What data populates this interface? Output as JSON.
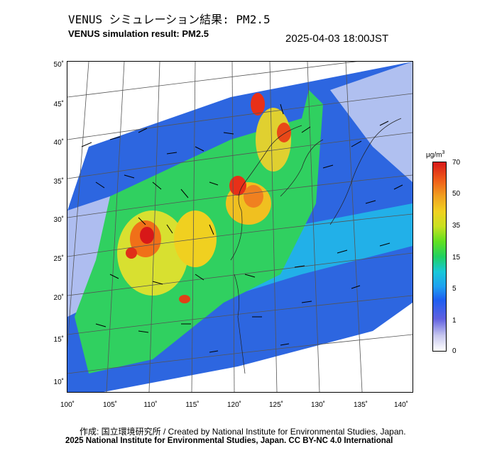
{
  "header": {
    "title_jp": "VENUS シミュレーション結果: PM2.5",
    "title_en": "VENUS simulation result: PM2.5",
    "timestamp": "2025-04-03 18:00JST"
  },
  "map": {
    "lat_ticks": [
      "50˚",
      "45˚",
      "40˚",
      "35˚",
      "30˚",
      "25˚",
      "20˚",
      "15˚",
      "10˚"
    ],
    "lon_ticks": [
      "100˚",
      "105˚",
      "110˚",
      "115˚",
      "120˚",
      "125˚",
      "130˚",
      "135˚",
      "140˚"
    ],
    "overlay": "PM2.5 concentration with wind vectors"
  },
  "colorbar": {
    "unit_base": "μg/m",
    "unit_sup": "3",
    "labels": [
      "70",
      "50",
      "35",
      "15",
      "5",
      "1",
      "0"
    ],
    "colors": [
      "#d81818",
      "#f06018",
      "#f0d020",
      "#20d060",
      "#1ea0f0",
      "#6060e0",
      "#ffffff"
    ]
  },
  "footer": {
    "credit_line": "作成: 国立環境研究所 / Created by National Institute for Environmental Studies, Japan.",
    "copyright_line": "2025 National Institute for Environmental Studies, Japan. CC BY-NC 4.0 International"
  }
}
